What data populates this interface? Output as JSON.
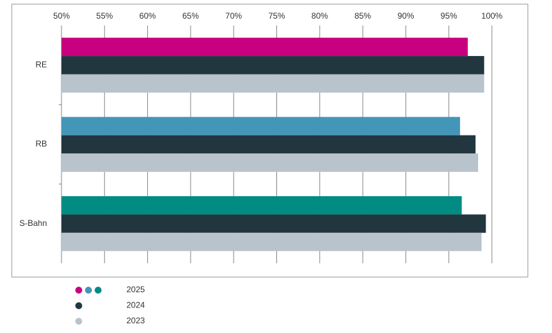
{
  "chart_data": {
    "type": "hbar",
    "categories": [
      "RE",
      "RB",
      "S-Bahn"
    ],
    "series": [
      {
        "name": "2025",
        "colors": [
          "#c8007f",
          "#4396b8",
          "#008c82"
        ],
        "values": [
          97.2,
          96.3,
          96.5
        ]
      },
      {
        "name": "2024",
        "color": "#223640",
        "values": [
          99.1,
          98.1,
          99.3
        ]
      },
      {
        "name": "2023",
        "color": "#b9c3cb",
        "values": [
          99.1,
          98.4,
          98.8
        ]
      }
    ],
    "xlim": [
      50,
      100
    ],
    "xticks": [
      {
        "value": 50,
        "label": "50%"
      },
      {
        "value": 55,
        "label": "55%"
      },
      {
        "value": 60,
        "label": "60%"
      },
      {
        "value": 65,
        "label": "65%"
      },
      {
        "value": 70,
        "label": "70%"
      },
      {
        "value": 75,
        "label": "75%"
      },
      {
        "value": 80,
        "label": "80%"
      },
      {
        "value": 85,
        "label": "85%"
      },
      {
        "value": 90,
        "label": "90%"
      },
      {
        "value": 95,
        "label": "95%"
      },
      {
        "value": 100,
        "label": "100%"
      }
    ],
    "grid": true
  }
}
